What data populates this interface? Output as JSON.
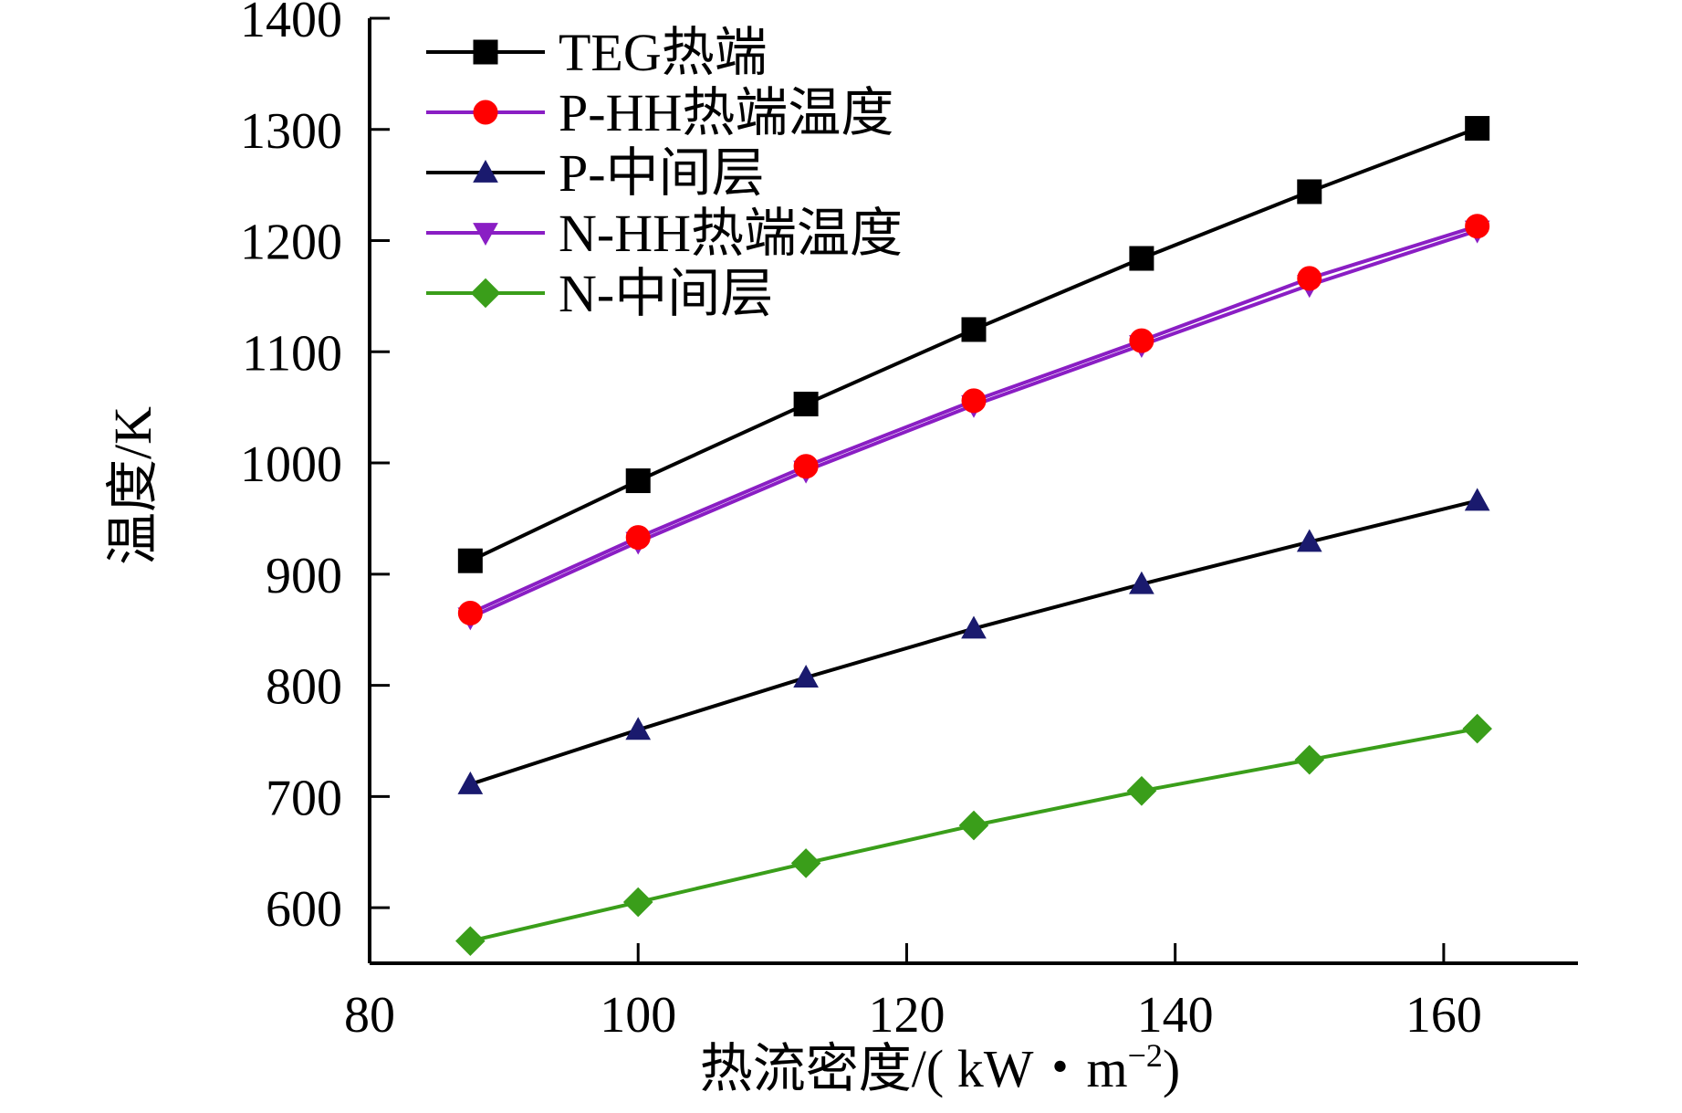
{
  "chart_data": {
    "type": "line",
    "xlabel": "热流密度/( kW・m",
    "xlabel_sup": "−2",
    "xlabel_close": ")",
    "ylabel": "温度/K",
    "xlim": [
      80,
      170
    ],
    "ylim": [
      550,
      1400
    ],
    "xticks": [
      80,
      100,
      120,
      140,
      160
    ],
    "yticks": [
      600,
      700,
      800,
      900,
      1000,
      1100,
      1200,
      1300,
      1400
    ],
    "grid": false,
    "legend_position": "top-left",
    "series": [
      {
        "name": "TEG热端",
        "color": "#000000",
        "marker": "square",
        "x": [
          87.5,
          100,
          112.5,
          125,
          137.5,
          150,
          162.5
        ],
        "y": [
          912,
          984,
          1053,
          1120,
          1184,
          1244,
          1301
        ]
      },
      {
        "name": "P-HH热端温度",
        "color": "#ff0000",
        "line_color": "#8a1ec4",
        "marker": "circle",
        "x": [
          87.5,
          100,
          112.5,
          125,
          137.5,
          150,
          162.5
        ],
        "y": [
          865,
          933,
          997,
          1056,
          1110,
          1166,
          1213
        ]
      },
      {
        "name": "P-中间层",
        "color": "#1a1a6e",
        "line_color": "#000000",
        "marker": "triangle-up",
        "x": [
          87.5,
          100,
          112.5,
          125,
          137.5,
          150,
          162.5
        ],
        "y": [
          711,
          760,
          807,
          851,
          891,
          929,
          966
        ]
      },
      {
        "name": "N-HH热端温度",
        "color": "#8a1ec4",
        "marker": "triangle-down",
        "x": [
          87.5,
          100,
          112.5,
          125,
          137.5,
          150,
          162.5
        ],
        "y": [
          861,
          929,
          993,
          1052,
          1106,
          1160,
          1209
        ]
      },
      {
        "name": "N-中间层",
        "color": "#3a9e1a",
        "marker": "diamond",
        "x": [
          87.5,
          100,
          112.5,
          125,
          137.5,
          150,
          162.5
        ],
        "y": [
          570,
          605,
          640,
          674,
          705,
          733,
          761
        ]
      }
    ]
  }
}
